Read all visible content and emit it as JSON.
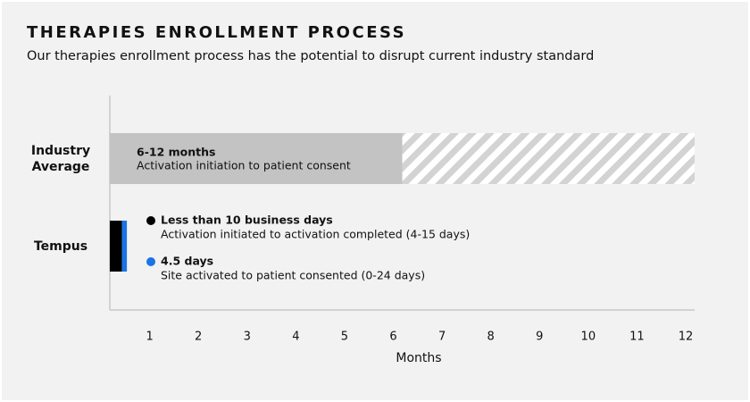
{
  "chart_data": {
    "type": "bar",
    "orientation": "horizontal",
    "title": "THERAPIES ENROLLMENT PROCESS",
    "subtitle": "Our therapies enrollment process has the potential to disrupt current industry standard",
    "x_label": "Months",
    "xlim": [
      0,
      12
    ],
    "xticks": [
      1,
      2,
      3,
      4,
      5,
      6,
      7,
      8,
      9,
      10,
      11,
      12
    ],
    "grid": false,
    "categories": [
      "Industry Average",
      "Tempus"
    ],
    "bars": [
      {
        "segments": [
          {
            "value": 6,
            "color": "#c3c3c3",
            "pattern": "solid",
            "label": "6-12 months",
            "note": "Activation initiation to patient consent"
          },
          {
            "value": 6,
            "color": "#d3d3d3",
            "pattern": "hatch"
          }
        ]
      },
      {
        "segments": [
          {
            "value": 0.25,
            "color": "#000000",
            "pattern": "solid",
            "label": "Less than 10 business days",
            "note": "Activation initiated to activation completed (4-15 days)"
          },
          {
            "value": 0.1,
            "color": "#1a73e8",
            "pattern": "solid",
            "label": "4.5 days",
            "note": "Site activated to patient consented (0-24 days)"
          }
        ]
      }
    ]
  }
}
